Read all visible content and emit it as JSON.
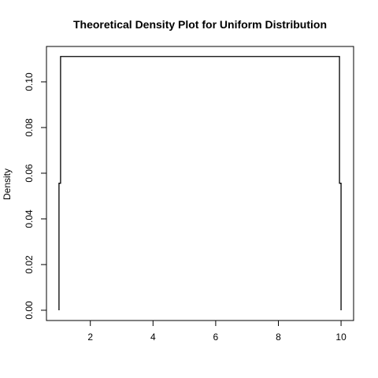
{
  "chart_data": {
    "type": "line",
    "title": "Theoretical Density Plot for Uniform Distribution",
    "xlabel": "",
    "ylabel": "Density",
    "xlim": [
      0.6,
      10.4
    ],
    "ylim": [
      -0.0045,
      0.1155
    ],
    "x_ticks": [
      2,
      4,
      6,
      8,
      10
    ],
    "y_ticks": [
      0.0,
      0.02,
      0.04,
      0.06,
      0.08,
      0.1
    ],
    "x_tick_labels": [
      "2",
      "4",
      "6",
      "8",
      "10"
    ],
    "y_tick_labels": [
      "0.00",
      "0.02",
      "0.04",
      "0.06",
      "0.08",
      "0.10"
    ],
    "grid": false,
    "series": [
      {
        "x": [
          1.0,
          1.0,
          1.05,
          1.05,
          9.95,
          9.95,
          10.0,
          10.0
        ],
        "y": [
          0.0,
          0.0556,
          0.0556,
          0.1111,
          0.1111,
          0.0556,
          0.0556,
          0.0
        ]
      }
    ]
  }
}
